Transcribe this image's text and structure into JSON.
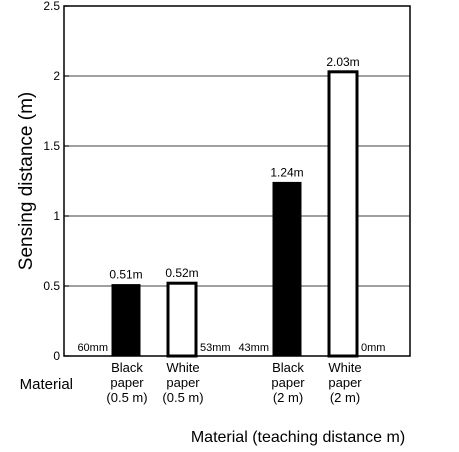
{
  "chart_data": {
    "type": "bar",
    "ylabel": "Sensing distance (m)",
    "xlabel": "Material (teaching distance m)",
    "side_label": "Material",
    "ylim": [
      0,
      2.5
    ],
    "yticks": [
      0,
      0.5,
      1,
      1.5,
      2,
      2.5
    ],
    "ytick_labels": [
      "0",
      "0.5",
      "1",
      "1.5",
      "2",
      "2.5"
    ],
    "grid": true,
    "colors": {
      "black_paper": "#000000",
      "white_paper": "#ffffff",
      "grid": "#000000"
    },
    "bars": [
      {
        "category": [
          "Black",
          "paper",
          "(0.5 m)"
        ],
        "value": 0.51,
        "value_label": "0.51m",
        "fill": "black",
        "offset_label": "60mm",
        "offset_side": "left"
      },
      {
        "category": [
          "White",
          "paper",
          "(0.5 m)"
        ],
        "value": 0.52,
        "value_label": "0.52m",
        "fill": "white",
        "offset_label": "53mm",
        "offset_side": "right"
      },
      {
        "category": [
          "Black",
          "paper",
          "(2 m)"
        ],
        "value": 1.24,
        "value_label": "1.24m",
        "fill": "black",
        "offset_label": "43mm",
        "offset_side": "left"
      },
      {
        "category": [
          "White",
          "paper",
          "(2 m)"
        ],
        "value": 2.03,
        "value_label": "2.03m",
        "fill": "white",
        "offset_label": "0mm",
        "offset_side": "right"
      }
    ]
  }
}
